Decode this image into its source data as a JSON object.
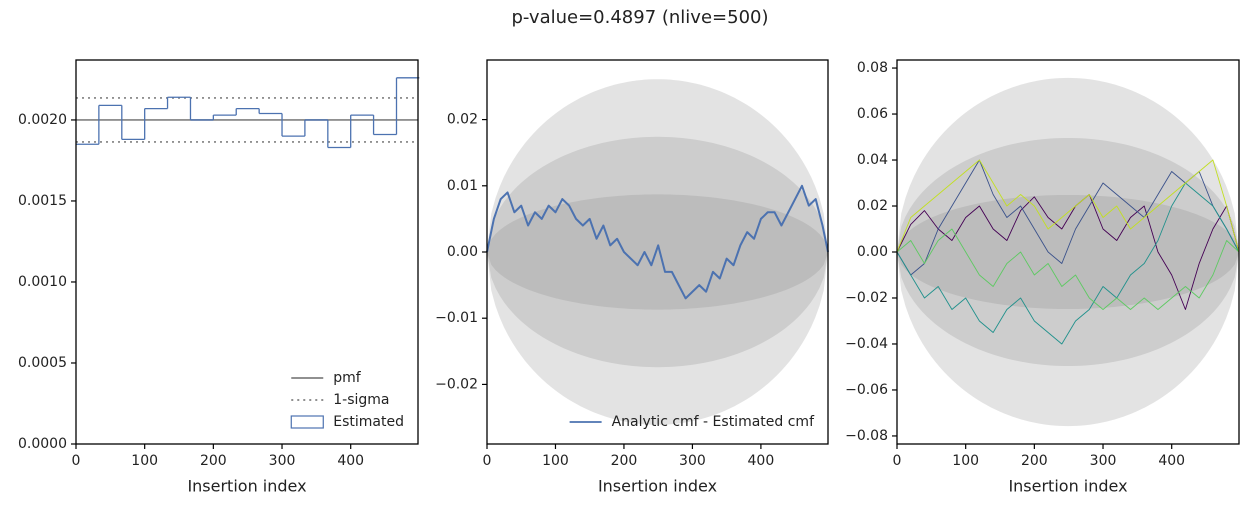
{
  "title": "p-value=0.4897 (nlive=500)",
  "chart_data": [
    {
      "type": "histogram",
      "xlabel": "Insertion index",
      "xlim": [
        0,
        498
      ],
      "xticks": [
        0,
        100,
        200,
        300,
        400
      ],
      "ylim": [
        0,
        0.00237
      ],
      "yticks": [
        {
          "value": 0,
          "label": "0.0000"
        },
        {
          "value": 0.0005,
          "label": "0.0005"
        },
        {
          "value": 0.001,
          "label": "0.0010"
        },
        {
          "value": 0.0015,
          "label": "0.0015"
        },
        {
          "value": 0.002,
          "label": "0.0020"
        }
      ],
      "legend": "lower right",
      "hlines": [
        {
          "name": "pmf",
          "values": [
            0.002
          ],
          "style": "solid",
          "color": "#808080"
        },
        {
          "name": "1-sigma",
          "values": [
            0.002136,
            0.001864
          ],
          "style": "dotted",
          "color": "#808080"
        }
      ],
      "bins": [
        0,
        33.3,
        66.7,
        100,
        133.3,
        166.7,
        200,
        233.3,
        266.7,
        300,
        333.3,
        366.7,
        400,
        433.3,
        466.7,
        500
      ],
      "series": [
        {
          "name": "Estimated",
          "color": "#4c72b0",
          "values": [
            0.00185,
            0.00209,
            0.00188,
            0.00207,
            0.00214,
            0.002,
            0.00203,
            0.00207,
            0.00204,
            0.0019,
            0.002,
            0.00183,
            0.00203,
            0.00191,
            0.00226
          ]
        }
      ]
    },
    {
      "type": "line",
      "xlabel": "Insertion index",
      "xlim": [
        0,
        498
      ],
      "xticks": [
        0,
        100,
        200,
        300,
        400
      ],
      "ylim": [
        -0.029,
        0.029
      ],
      "yticks": [
        {
          "value": -0.02,
          "label": "−0.02"
        },
        {
          "value": -0.01,
          "label": "−0.01"
        },
        {
          "value": 0,
          "label": "0.00"
        },
        {
          "value": 0.01,
          "label": "0.01"
        },
        {
          "value": 0.02,
          "label": "0.02"
        }
      ],
      "legend": "lower right",
      "bands": [
        0.0261,
        0.0174,
        0.0087
      ],
      "band_color": "#808080",
      "linewidth": 2,
      "x": [
        0,
        10,
        20,
        30,
        40,
        50,
        60,
        70,
        80,
        90,
        100,
        110,
        120,
        130,
        140,
        150,
        160,
        170,
        180,
        190,
        200,
        210,
        220,
        230,
        240,
        250,
        260,
        270,
        280,
        290,
        300,
        310,
        320,
        330,
        340,
        350,
        360,
        370,
        380,
        390,
        400,
        410,
        420,
        430,
        440,
        450,
        460,
        470,
        480,
        490,
        498
      ],
      "series": [
        {
          "name": "Analytic cmf - Estimated cmf",
          "color": "#4c72b0",
          "values": [
            0,
            0.005,
            0.008,
            0.009,
            0.006,
            0.007,
            0.004,
            0.006,
            0.005,
            0.007,
            0.006,
            0.008,
            0.007,
            0.005,
            0.004,
            0.005,
            0.002,
            0.004,
            0.001,
            0.002,
            0,
            -0.001,
            -0.002,
            0,
            -0.002,
            0.001,
            -0.003,
            -0.003,
            -0.005,
            -0.007,
            -0.006,
            -0.005,
            -0.006,
            -0.003,
            -0.004,
            -0.001,
            -0.002,
            0.001,
            0.003,
            0.002,
            0.005,
            0.006,
            0.006,
            0.004,
            0.006,
            0.008,
            0.01,
            0.007,
            0.008,
            0.004,
            0
          ]
        }
      ]
    },
    {
      "type": "line",
      "xlabel": "Insertion index",
      "xlim": [
        0,
        498
      ],
      "xticks": [
        0,
        100,
        200,
        300,
        400
      ],
      "ylim": [
        -0.0835,
        0.0835
      ],
      "yticks": [
        {
          "value": -0.08,
          "label": "−0.08"
        },
        {
          "value": -0.06,
          "label": "−0.06"
        },
        {
          "value": -0.04,
          "label": "−0.04"
        },
        {
          "value": -0.02,
          "label": "−0.02"
        },
        {
          "value": 0,
          "label": "0.00"
        },
        {
          "value": 0.02,
          "label": "0.02"
        },
        {
          "value": 0.04,
          "label": "0.04"
        },
        {
          "value": 0.06,
          "label": "0.06"
        },
        {
          "value": 0.08,
          "label": "0.08"
        }
      ],
      "bands": [
        0.0757,
        0.0496,
        0.0248
      ],
      "band_color": "#808080",
      "linewidth": 0.9,
      "x": [
        0,
        20,
        40,
        60,
        80,
        100,
        120,
        140,
        160,
        180,
        200,
        220,
        240,
        260,
        280,
        300,
        320,
        340,
        360,
        380,
        400,
        420,
        440,
        460,
        480,
        498
      ],
      "series": [
        {
          "color": "#440154",
          "values": [
            0,
            0.012,
            0.018,
            0.01,
            0.005,
            0.015,
            0.02,
            0.01,
            0.005,
            0.018,
            0.024,
            0.015,
            0.01,
            0.02,
            0.025,
            0.01,
            0.005,
            0.015,
            0.02,
            0,
            -0.01,
            -0.025,
            -0.005,
            0.01,
            0.02,
            0
          ]
        },
        {
          "color": "#3b528b",
          "values": [
            0,
            -0.01,
            -0.005,
            0.01,
            0.02,
            0.03,
            0.04,
            0.025,
            0.015,
            0.02,
            0.01,
            0,
            -0.005,
            0.01,
            0.02,
            0.03,
            0.025,
            0.02,
            0.015,
            0.025,
            0.035,
            0.03,
            0.035,
            0.02,
            0.01,
            0
          ]
        },
        {
          "color": "#21918c",
          "values": [
            0,
            -0.01,
            -0.02,
            -0.015,
            -0.025,
            -0.02,
            -0.03,
            -0.035,
            -0.025,
            -0.02,
            -0.03,
            -0.035,
            -0.04,
            -0.03,
            -0.025,
            -0.015,
            -0.02,
            -0.01,
            -0.005,
            0.005,
            0.02,
            0.03,
            0.025,
            0.02,
            0.01,
            0
          ]
        },
        {
          "color": "#5ec962",
          "values": [
            0,
            0.005,
            -0.005,
            0.005,
            0.01,
            0,
            -0.01,
            -0.015,
            -0.005,
            0,
            -0.01,
            -0.005,
            -0.015,
            -0.01,
            -0.02,
            -0.025,
            -0.02,
            -0.025,
            -0.02,
            -0.025,
            -0.02,
            -0.015,
            -0.02,
            -0.01,
            0.005,
            0
          ]
        },
        {
          "color": "#c2df23",
          "values": [
            0,
            0.015,
            0.02,
            0.025,
            0.03,
            0.035,
            0.04,
            0.03,
            0.02,
            0.025,
            0.02,
            0.01,
            0.015,
            0.02,
            0.025,
            0.015,
            0.02,
            0.01,
            0.015,
            0.02,
            0.025,
            0.03,
            0.035,
            0.04,
            0.02,
            0
          ]
        }
      ]
    }
  ]
}
